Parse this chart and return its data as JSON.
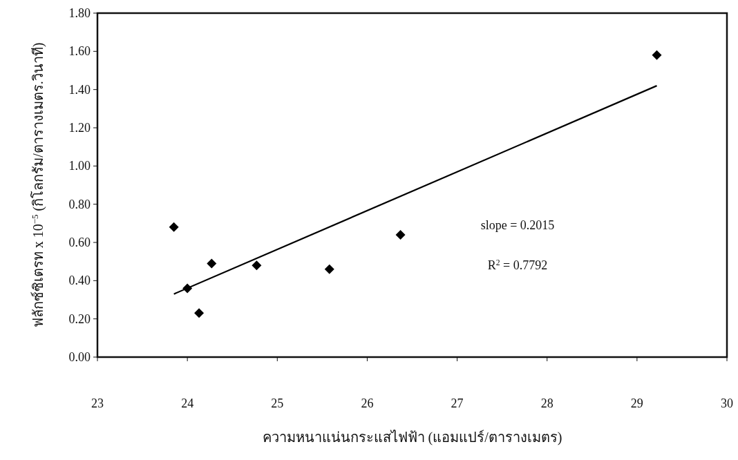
{
  "chart_data": {
    "type": "scatter",
    "xlabel": "ความหนาแน่นกระแสไฟฟ้า (แอมแปร์/ตารางเมตร)",
    "ylabel": "ฟลักซ์ซิเตรท x 10$^{−5}$ (กิโลกรัม/ตารางเมตร.วินาที)",
    "xlim": [
      23,
      30
    ],
    "xticks": [
      23,
      24,
      25,
      26,
      27,
      28,
      29,
      30
    ],
    "ylim": [
      0,
      1.8
    ],
    "yticks": [
      {
        "value": 0,
        "label": "0.00"
      },
      {
        "value": 0.2,
        "label": "0.20"
      },
      {
        "value": 0.4,
        "label": "0.40"
      },
      {
        "value": 0.6,
        "label": "0.60"
      },
      {
        "value": 0.8,
        "label": "0.80"
      },
      {
        "value": 1.0,
        "label": "1.00"
      },
      {
        "value": 1.2,
        "label": "1.20"
      },
      {
        "value": 1.4,
        "label": "1.40"
      },
      {
        "value": 1.6,
        "label": "1.60"
      },
      {
        "value": 1.8,
        "label": "1.80"
      }
    ],
    "marker": "diamond",
    "series": [
      {
        "type": "scatter",
        "color": "#000000",
        "x": [
          23.85,
          24.0,
          24.13,
          24.27,
          24.77,
          25.58,
          26.37,
          29.22
        ],
        "values": [
          0.68,
          0.36,
          0.23,
          0.49,
          0.48,
          0.46,
          0.64,
          1.58
        ]
      },
      {
        "type": "line",
        "color": "#000000",
        "marker": "none",
        "line_style": "solid",
        "x": [
          23.85,
          29.22
        ],
        "values": [
          0.33,
          1.42
        ]
      }
    ],
    "annotations": [
      "slope = 0.2015",
      "R$^{2}$ = 0.7792"
    ]
  }
}
